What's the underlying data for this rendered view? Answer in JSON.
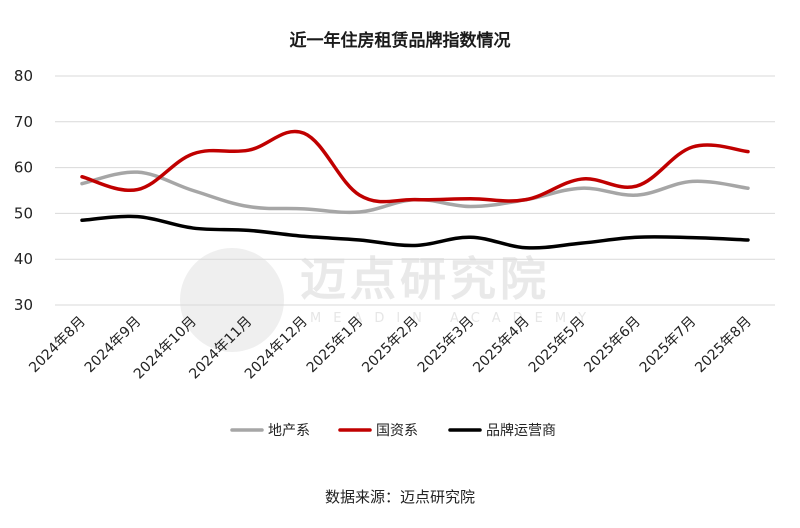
{
  "chart_data": {
    "type": "line",
    "title": "近一年住房租赁品牌指数情况",
    "categories": [
      "2024年8月",
      "2024年9月",
      "2024年10月",
      "2024年11月",
      "2024年12月",
      "2025年1月",
      "2025年2月",
      "2025年3月",
      "2025年4月",
      "2025年5月",
      "2025年6月",
      "2025年7月",
      "2025年8月"
    ],
    "yticks": [
      "80",
      "70",
      "60",
      "50",
      "40",
      "30"
    ],
    "ylim": [
      30,
      80
    ],
    "grid": "horizontal",
    "legend_position": "bottom",
    "series": [
      {
        "name": "地产系",
        "color": "#a6a6a6",
        "values": [
          56.5,
          59.0,
          55.0,
          51.5,
          51.0,
          50.3,
          53.0,
          51.5,
          53.0,
          55.5,
          54.0,
          57.0,
          55.5
        ]
      },
      {
        "name": "国资系",
        "color": "#c00000",
        "values": [
          58.0,
          55.2,
          63.0,
          63.8,
          67.5,
          54.0,
          53.0,
          53.2,
          53.0,
          57.5,
          56.0,
          64.5,
          63.5
        ]
      },
      {
        "name": "品牌运营商",
        "color": "#000000",
        "values": [
          48.5,
          49.3,
          46.8,
          46.3,
          45.0,
          44.2,
          43.0,
          44.8,
          42.5,
          43.5,
          44.8,
          44.7,
          44.2
        ]
      }
    ]
  },
  "watermark": {
    "text": "迈点研究院",
    "subtext": "MEADIN ACADEMY"
  },
  "source": "数据来源：迈点研究院"
}
